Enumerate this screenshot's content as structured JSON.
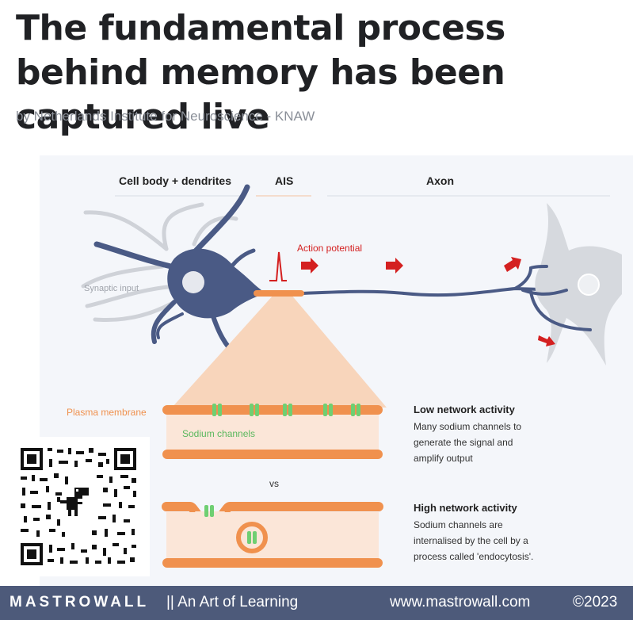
{
  "article": {
    "title": "The fundamental process behind memory has been captured live",
    "byline": "by Netherlands Institute for Neuroscience - KNAW"
  },
  "diagram": {
    "headers": {
      "cell_body": "Cell body + dendrites",
      "ais": "AIS",
      "axon": "Axon"
    },
    "labels": {
      "synaptic_input": "Synaptic input",
      "action_potential": "Action potential",
      "plasma_membrane": "Plasma membrane",
      "sodium_channels": "Sodium channels",
      "vs": "vs"
    },
    "low": {
      "title": "Low network activity",
      "lines": [
        "Many sodium channels to",
        "generate the signal and",
        "amplify output"
      ]
    },
    "high": {
      "title": "High network activity",
      "lines": [
        "Sodium channels are",
        "internalised  by the cell by a",
        "process  called 'endocytosis'."
      ]
    },
    "colors": {
      "neuron": "#4a5a85",
      "dendrite_light": "#cfd2d8",
      "membrane": "#f0914e",
      "channel": "#6fcf72",
      "arrow": "#d42020",
      "cone": "#f8d5bb"
    }
  },
  "footer": {
    "brand": "MASTROWALL",
    "tagline": "|| An Art of Learning",
    "site": "www.mastrowall.com",
    "copyright": "©2023"
  },
  "qr": {
    "icon": "dinosaur-icon"
  }
}
